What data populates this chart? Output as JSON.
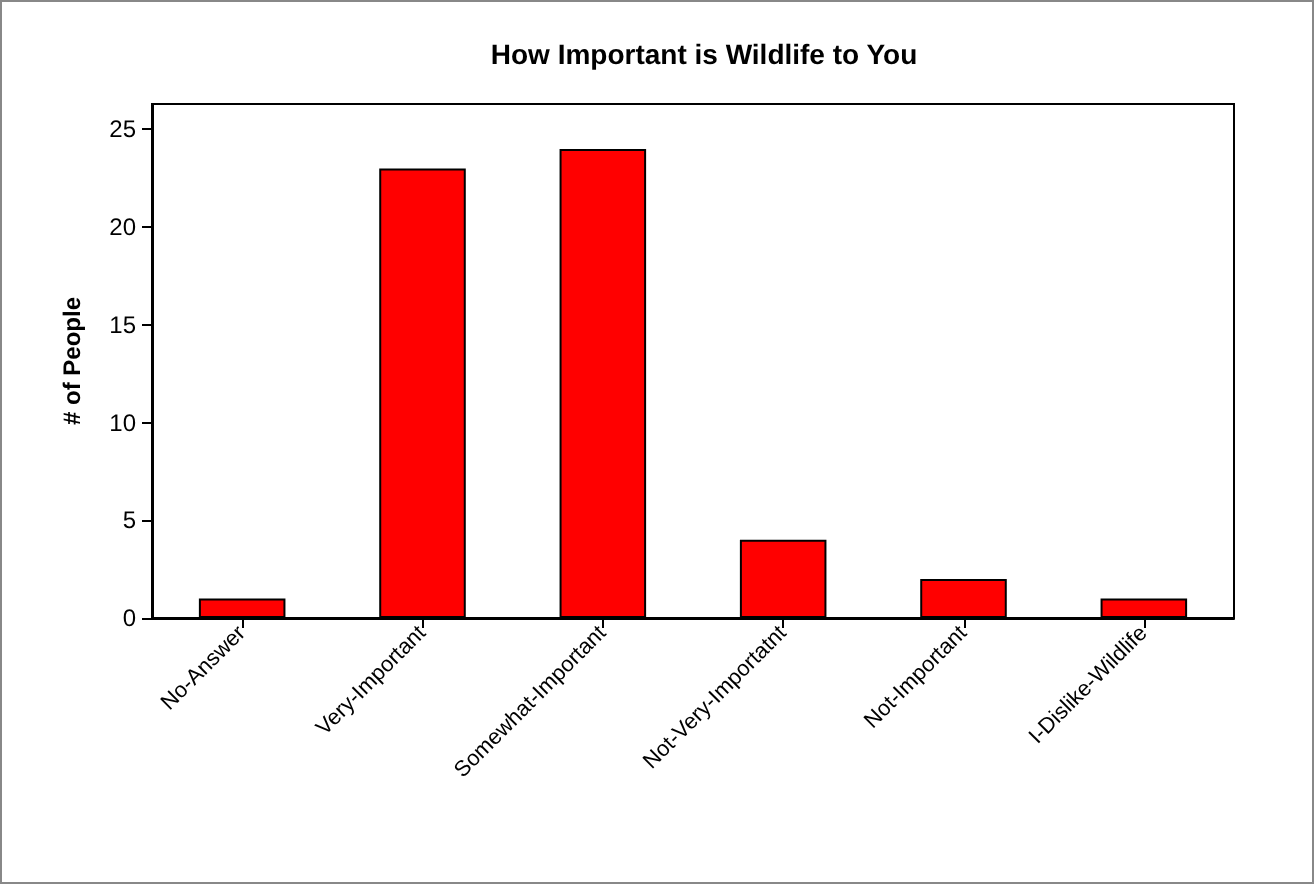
{
  "chart_data": {
    "type": "bar",
    "title": "How Important is Wildlife to You",
    "ylabel": "# of People",
    "categories": [
      "No-Answer",
      "Very-Important",
      "Somewhat-Important",
      "Not-Very-Importatnt",
      "Not-Important",
      "I-Dislike-Wildlife"
    ],
    "values": [
      1,
      23,
      24,
      4,
      2,
      1
    ],
    "color": "#ff0000",
    "ylim": [
      0,
      26.3
    ],
    "yticks": [
      0,
      5,
      10,
      15,
      20,
      25
    ],
    "grid": false
  }
}
